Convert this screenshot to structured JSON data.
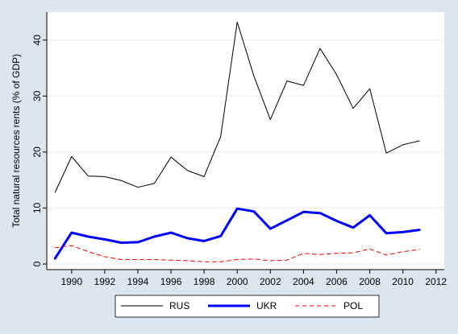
{
  "chart_data": {
    "type": "line",
    "title": "",
    "xlabel": "",
    "ylabel": "Total natural resources rents (% of GDP)",
    "xlim": [
      1988.5,
      2012.5
    ],
    "ylim": [
      -1,
      45
    ],
    "x_ticks": [
      1990,
      1992,
      1994,
      1996,
      1998,
      2000,
      2002,
      2004,
      2006,
      2008,
      2010,
      2012
    ],
    "y_ticks": [
      0,
      10,
      20,
      30,
      40
    ],
    "grid": "horizontal",
    "legend_position": "bottom",
    "x": [
      1989,
      1990,
      1991,
      1992,
      1993,
      1994,
      1995,
      1996,
      1997,
      1998,
      1999,
      2000,
      2001,
      2002,
      2003,
      2004,
      2005,
      2006,
      2007,
      2008,
      2009,
      2010,
      2011
    ],
    "series": [
      {
        "name": "RUS",
        "color": "#000000",
        "style": "solid-thin",
        "values": [
          12.8,
          19.2,
          15.7,
          15.6,
          14.9,
          13.7,
          14.4,
          19.1,
          16.7,
          15.6,
          22.8,
          43.2,
          33.6,
          25.8,
          32.7,
          31.9,
          38.5,
          33.8,
          27.8,
          31.3,
          19.8,
          21.3,
          22.0
        ]
      },
      {
        "name": "UKR",
        "color": "#0000ff",
        "style": "solid-thick",
        "values": [
          1.0,
          5.6,
          4.9,
          4.4,
          3.8,
          3.9,
          4.9,
          5.6,
          4.6,
          4.1,
          5.0,
          9.9,
          9.4,
          6.3,
          7.8,
          9.3,
          9.1,
          7.7,
          6.5,
          8.7,
          5.5,
          5.7,
          6.1
        ]
      },
      {
        "name": "POL",
        "color": "#ff0000",
        "style": "dashed",
        "values": [
          2.9,
          3.3,
          2.2,
          1.3,
          0.8,
          0.8,
          0.8,
          0.7,
          0.6,
          0.4,
          0.4,
          0.8,
          0.9,
          0.6,
          0.7,
          1.9,
          1.7,
          1.9,
          2.0,
          2.7,
          1.6,
          2.2,
          2.6
        ]
      }
    ]
  }
}
